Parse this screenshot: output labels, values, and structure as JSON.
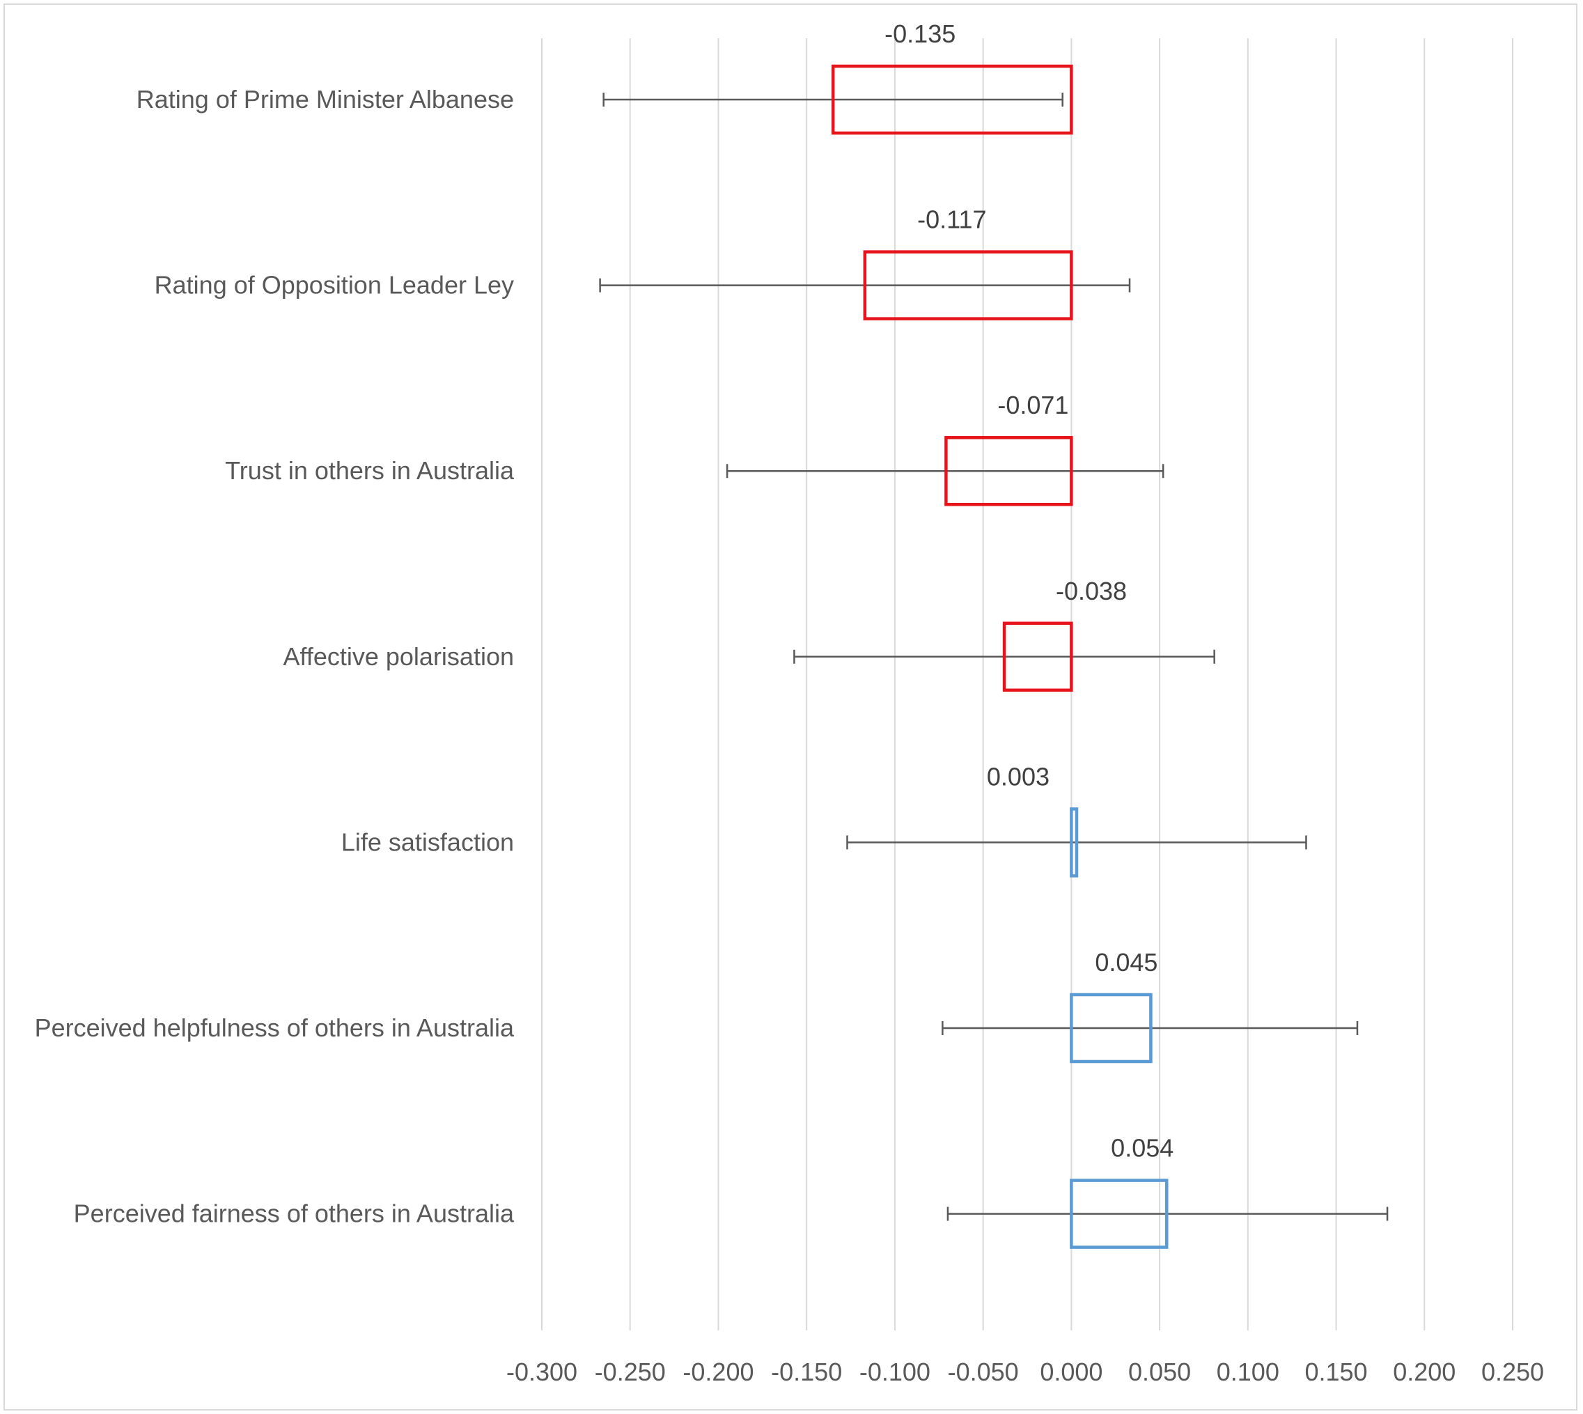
{
  "chart_data": {
    "type": "bar",
    "orientation": "horizontal",
    "title": "",
    "xlabel": "",
    "ylabel": "",
    "xlim": [
      -0.3,
      0.25
    ],
    "x_ticks": [
      -0.3,
      -0.25,
      -0.2,
      -0.15,
      -0.1,
      -0.05,
      0.0,
      0.05,
      0.1,
      0.15,
      0.2,
      0.25
    ],
    "x_tick_labels": [
      "-0.300",
      "-0.250",
      "-0.200",
      "-0.150",
      "-0.100",
      "-0.050",
      "0.000",
      "0.050",
      "0.100",
      "0.150",
      "0.200",
      "0.250"
    ],
    "grid": true,
    "legend": "none",
    "colors": {
      "negative": "#e8141c",
      "positive": "#5b9bd5",
      "error_bar": "#595959",
      "grid": "#d9d9d9"
    },
    "categories": [
      "Rating of Prime Minister Albanese",
      "Rating of Opposition Leader Ley",
      "Trust in others in Australia",
      "Affective polarisation",
      "Life satisfaction",
      "Perceived helpfulness of others in Australia",
      "Perceived fairness of others in Australia"
    ],
    "values": [
      -0.135,
      -0.117,
      -0.071,
      -0.038,
      0.003,
      0.045,
      0.054
    ],
    "value_labels": [
      "-0.135",
      "-0.117",
      "-0.071",
      "-0.038",
      "0.003",
      "0.045",
      "0.054"
    ],
    "ci_low": [
      -0.265,
      -0.267,
      -0.195,
      -0.157,
      -0.127,
      -0.073,
      -0.07
    ],
    "ci_high": [
      -0.005,
      0.033,
      0.052,
      0.081,
      0.133,
      0.162,
      0.179
    ]
  }
}
